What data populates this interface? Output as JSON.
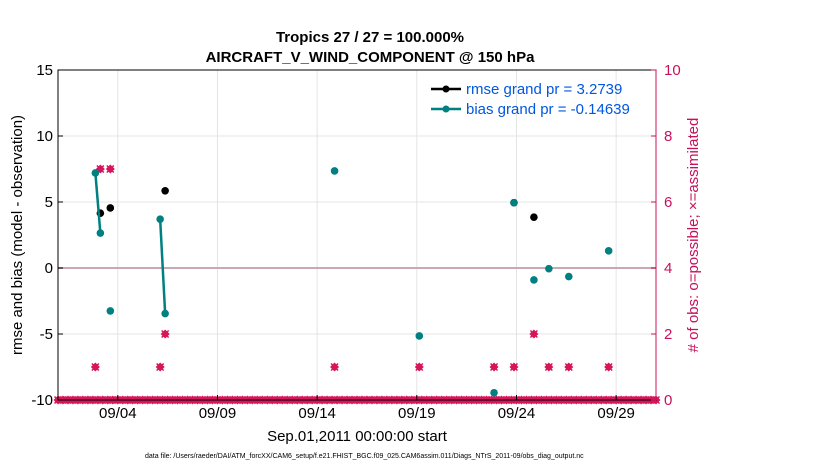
{
  "chart_data": {
    "type": "line",
    "title": "Tropics 27 / 27 = 100.000%",
    "subtitle": "AIRCRAFT_V_WIND_COMPONENT @ 150 hPa",
    "xlabel": "Sep.01,2011 00:00:00 start",
    "ylabel": "rmse and bias (model - observation)",
    "y2label": "# of obs: o=possible; ×=assimilated",
    "xlim": [
      0,
      30
    ],
    "ylim": [
      -10,
      15
    ],
    "y2lim": [
      0,
      10
    ],
    "x_ticks": [
      {
        "value": 3,
        "label": "09/04"
      },
      {
        "value": 8,
        "label": "09/09"
      },
      {
        "value": 13,
        "label": "09/14"
      },
      {
        "value": 18,
        "label": "09/19"
      },
      {
        "value": 23,
        "label": "09/24"
      },
      {
        "value": 28,
        "label": "09/29"
      }
    ],
    "y_ticks": [
      -10,
      -5,
      0,
      5,
      10,
      15
    ],
    "y2_ticks": [
      0,
      2,
      4,
      6,
      8,
      10
    ],
    "legend_position": "top-right",
    "colors": {
      "rmse": "#000000",
      "bias": "#008080",
      "obs": "#d6155a",
      "zero": "#c8a8b4",
      "axis2": "#c8105a"
    },
    "series": [
      {
        "name": "rmse grand pr = 3.2739",
        "segments": [
          [
            [
              2.125,
              4.15
            ]
          ],
          [
            [
              2.625,
              4.55
            ]
          ],
          [
            [
              5.375,
              5.85
            ]
          ],
          [
            [
              22.875,
              4.95
            ]
          ],
          [
            [
              23.875,
              3.85
            ]
          ]
        ]
      },
      {
        "name": "bias grand pr = -0.14639",
        "segments": [
          [
            [
              1.875,
              7.2
            ],
            [
              2.125,
              2.65
            ]
          ],
          [
            [
              2.625,
              -3.25
            ]
          ],
          [
            [
              5.125,
              3.7
            ],
            [
              5.375,
              -3.45
            ]
          ],
          [
            [
              13.875,
              7.35
            ]
          ],
          [
            [
              18.125,
              -5.15
            ]
          ],
          [
            [
              21.875,
              -9.45
            ]
          ],
          [
            [
              22.875,
              4.95
            ]
          ],
          [
            [
              23.875,
              -0.9
            ]
          ],
          [
            [
              24.625,
              -0.05
            ]
          ],
          [
            [
              25.625,
              -0.65
            ]
          ],
          [
            [
              27.625,
              1.3
            ]
          ]
        ]
      }
    ],
    "obs_counts": {
      "possible": [
        {
          "x": 1.875,
          "count": 1
        },
        {
          "x": 2.125,
          "count": 7
        },
        {
          "x": 2.625,
          "count": 7
        },
        {
          "x": 5.125,
          "count": 1
        },
        {
          "x": 5.375,
          "count": 2
        },
        {
          "x": 13.875,
          "count": 1
        },
        {
          "x": 18.125,
          "count": 1
        },
        {
          "x": 21.875,
          "count": 1
        },
        {
          "x": 22.875,
          "count": 1
        },
        {
          "x": 23.875,
          "count": 2
        },
        {
          "x": 24.625,
          "count": 1
        },
        {
          "x": 25.625,
          "count": 1
        },
        {
          "x": 27.625,
          "count": 1
        }
      ],
      "baseline_start": 0,
      "baseline_end": 30,
      "baseline_step": 0.25,
      "baseline_value": 0
    }
  },
  "footer": "data file: /Users/raeder/DAI/ATM_forcXX/CAM6_setup/f.e21.FHIST_BGC.f09_025.CAM6assim.011/Diags_NTrS_2011-09/obs_diag_output.nc"
}
